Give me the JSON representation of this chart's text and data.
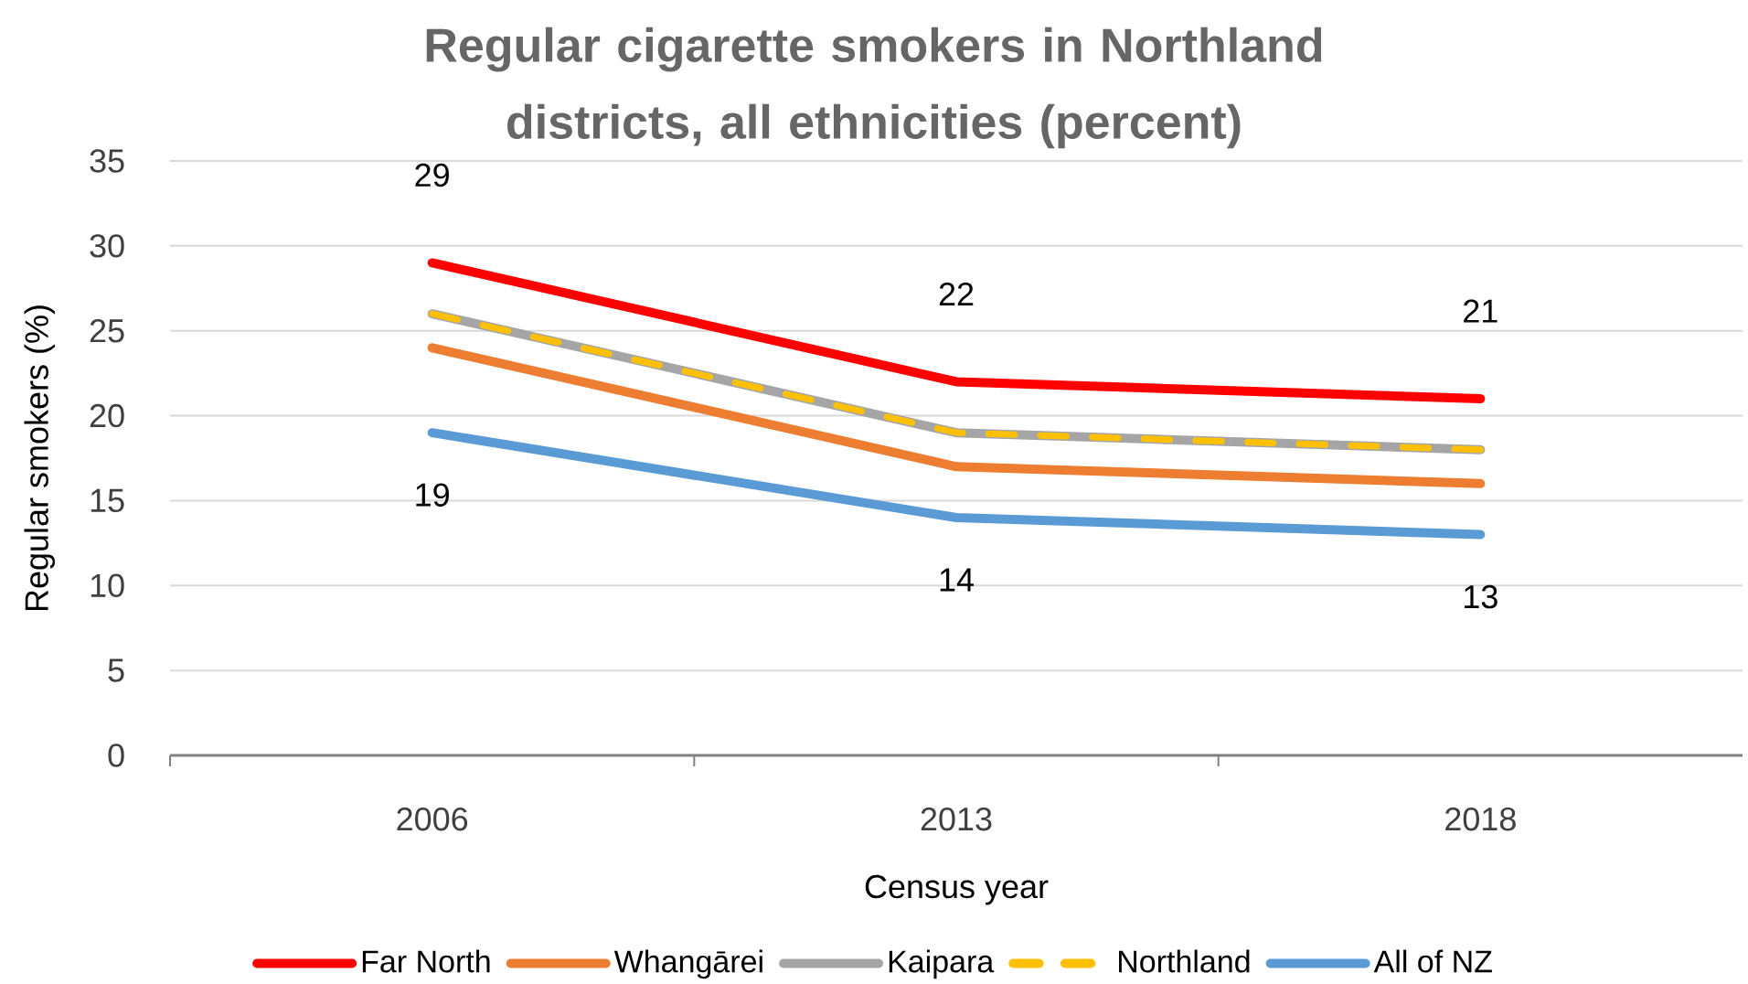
{
  "chart_data": {
    "type": "line",
    "title": "Regular cigarette smokers in Northland districts, all ethnicities (percent)",
    "xlabel": "Census year",
    "ylabel": "Regular smokers (%)",
    "categories": [
      "2006",
      "2013",
      "2018"
    ],
    "ylim": [
      0,
      35
    ],
    "yticks": [
      0,
      5,
      10,
      15,
      20,
      25,
      30,
      35
    ],
    "grid": "y",
    "legend": "bottom",
    "line_style": "solid",
    "marker": "none",
    "series": [
      {
        "name": "Far North",
        "color": "#ff0000",
        "values": [
          29,
          22,
          21
        ],
        "value_labels": [
          "29",
          "22",
          "21"
        ]
      },
      {
        "name": "Whangārei",
        "color": "#ed7d31",
        "values": [
          24,
          17,
          16
        ]
      },
      {
        "name": "Kaipara",
        "color": "#a5a5a5",
        "values": [
          26,
          19,
          18
        ]
      },
      {
        "name": "Northland",
        "color": "#ffc000",
        "values": [
          26,
          19,
          18
        ],
        "line_style": "dashed"
      },
      {
        "name": "All of NZ",
        "color": "#5b9bd5",
        "values": [
          19,
          14,
          13
        ],
        "value_labels": [
          "19",
          "14",
          "13"
        ]
      }
    ]
  }
}
